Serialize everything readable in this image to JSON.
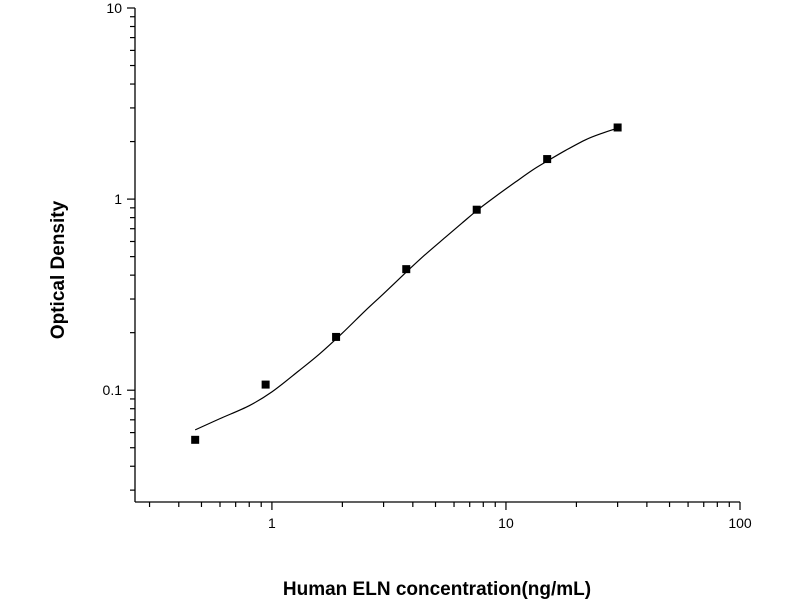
{
  "chart_data": {
    "type": "scatter",
    "title": "",
    "xlabel": "Human ELN concentration(ng/mL)",
    "ylabel": "Optical Density",
    "x_scale": "log",
    "y_scale": "log",
    "xlim": [
      0.26,
      100
    ],
    "ylim": [
      0.026,
      10
    ],
    "x_ticks": [
      1,
      10,
      100
    ],
    "x_tick_labels": [
      "1",
      "10",
      "100"
    ],
    "y_ticks": [
      0.1,
      1,
      10
    ],
    "y_tick_labels": [
      "0.1",
      "1",
      "10"
    ],
    "grid": false,
    "legend": "none",
    "series": [
      {
        "x": [
          0.47,
          0.94,
          1.88,
          3.75,
          7.5,
          15,
          30
        ],
        "y": [
          0.055,
          0.107,
          0.19,
          0.43,
          0.88,
          1.62,
          2.37
        ]
      }
    ],
    "fit_curve": {
      "x": [
        0.47,
        0.6,
        0.8,
        1.0,
        1.3,
        1.6,
        2.0,
        2.5,
        3.0,
        3.75,
        4.5,
        5.5,
        6.5,
        7.5,
        9,
        11,
        13,
        15,
        18,
        22,
        26,
        30
      ],
      "y": [
        0.062,
        0.071,
        0.083,
        0.098,
        0.126,
        0.155,
        0.199,
        0.26,
        0.32,
        0.415,
        0.51,
        0.63,
        0.75,
        0.87,
        1.03,
        1.23,
        1.42,
        1.58,
        1.8,
        2.05,
        2.22,
        2.35
      ]
    },
    "colors": {
      "axis": "#000000",
      "points": "#000000",
      "curve": "#000000"
    }
  }
}
